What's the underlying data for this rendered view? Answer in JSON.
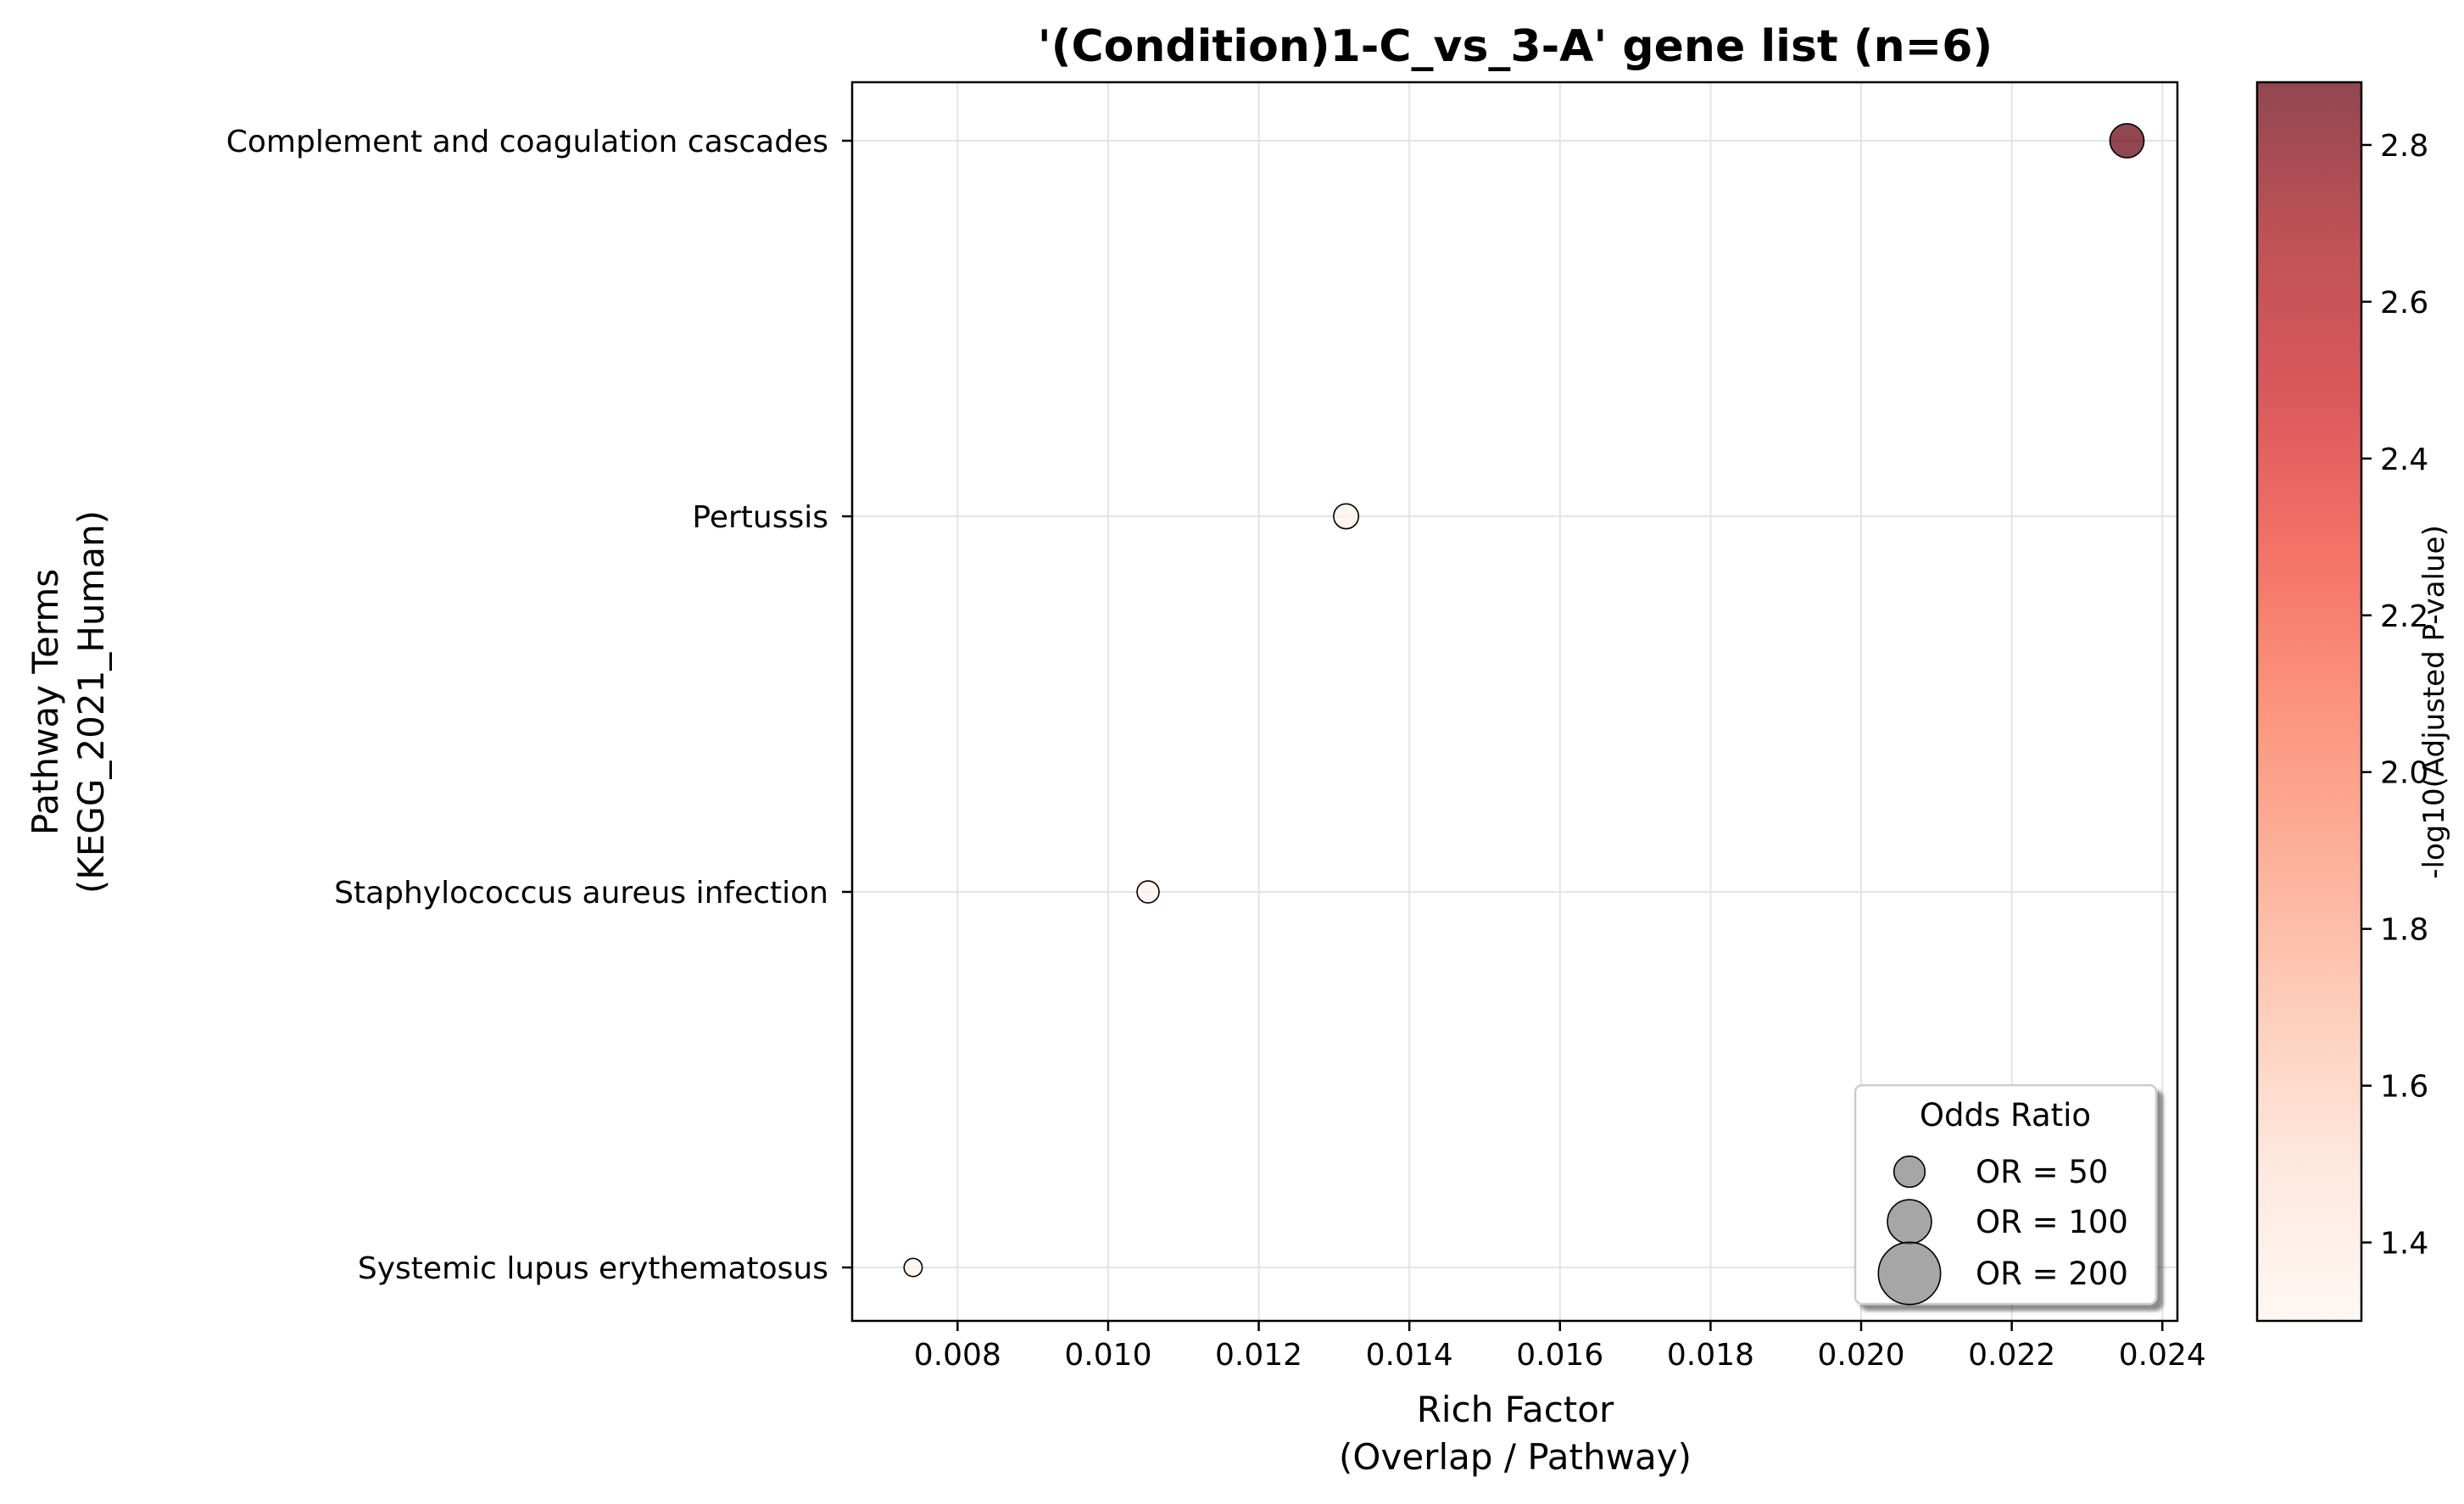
{
  "chart_data": {
    "type": "scatter",
    "title": "'(Condition)1-C_vs_3-A' gene list (n=6)",
    "xlabel": [
      "Rich Factor",
      "(Overlap / Pathway)"
    ],
    "ylabel": [
      "Pathway Terms",
      "(KEGG_2021_Human)"
    ],
    "xlim": [
      0.0066,
      0.0242
    ],
    "xticks": [
      0.008,
      0.01,
      0.012,
      0.014,
      0.016,
      0.018,
      0.02,
      0.022,
      0.024
    ],
    "xtick_labels": [
      "0.008",
      "0.010",
      "0.012",
      "0.014",
      "0.016",
      "0.018",
      "0.020",
      "0.022",
      "0.024"
    ],
    "grid": true,
    "categories": [
      "Complement and coagulation cascades",
      "Pertussis",
      "Staphylococcus aureus infection",
      "Systemic lupus erythematosus"
    ],
    "points": [
      {
        "term": "Complement and coagulation cascades",
        "rich_factor": 0.02353,
        "neg_log10_padj": 2.88,
        "odds_ratio": 60
      },
      {
        "term": "Pertussis",
        "rich_factor": 0.01316,
        "neg_log10_padj": 1.33,
        "odds_ratio": 32
      },
      {
        "term": "Staphylococcus aureus infection",
        "rich_factor": 0.01053,
        "neg_log10_padj": 1.33,
        "odds_ratio": 25
      },
      {
        "term": "Systemic lupus erythematosus",
        "rich_factor": 0.00741,
        "neg_log10_padj": 1.33,
        "odds_ratio": 17
      }
    ],
    "colorbar": {
      "label": "-log10(Adjusted P-value)",
      "range": [
        1.3,
        2.88
      ],
      "ticks": [
        1.4,
        1.6,
        1.8,
        2.0,
        2.2,
        2.4,
        2.6,
        2.8
      ],
      "tick_labels": [
        "1.4",
        "1.6",
        "1.8",
        "2.0",
        "2.2",
        "2.4",
        "2.6",
        "2.8"
      ],
      "colormap": "Reds",
      "stops": [
        "#fff5f0",
        "#fee0d2",
        "#fcbba1",
        "#fc9272",
        "#fb6a4a",
        "#ef3b2c",
        "#cb181d",
        "#a50f15",
        "#67000d"
      ]
    },
    "legend": {
      "title": "Odds Ratio",
      "placement": "lower-right",
      "entries": [
        {
          "label": "OR = 50",
          "odds_ratio": 50
        },
        {
          "label": "OR = 100",
          "odds_ratio": 100
        },
        {
          "label": "OR = 200",
          "odds_ratio": 200
        }
      ]
    }
  }
}
